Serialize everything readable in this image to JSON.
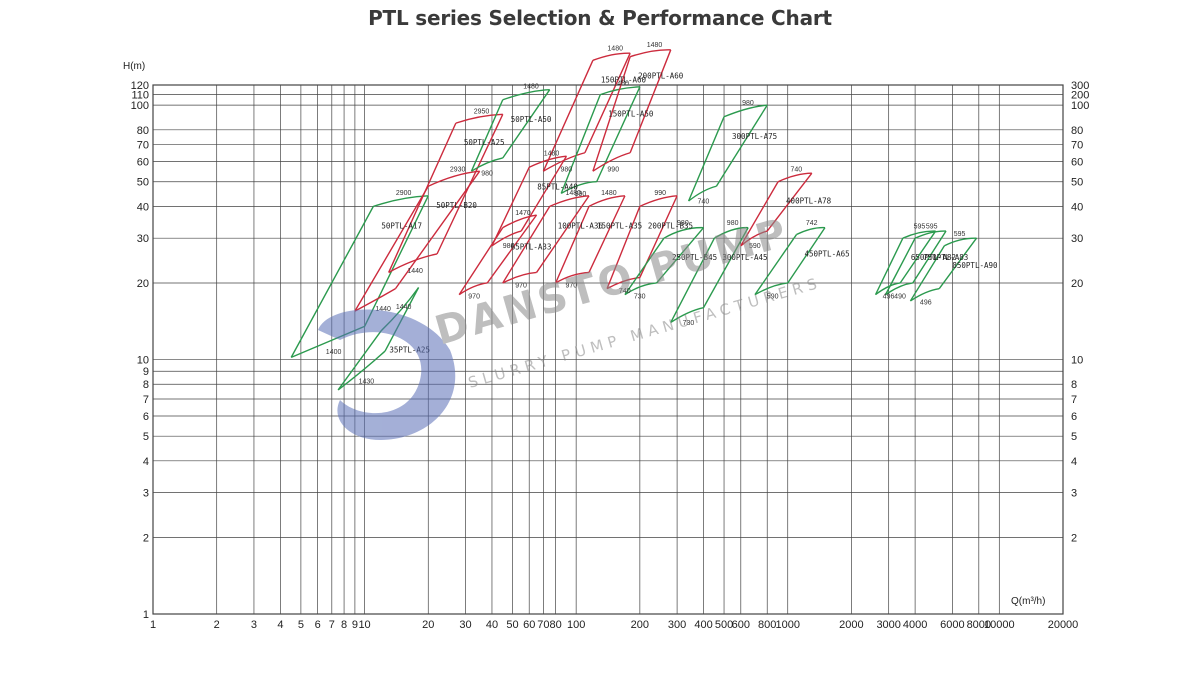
{
  "title": "PTL  series  Selection & Performance Chart",
  "colors": {
    "red": "#cc2b3d",
    "green": "#2b9a4e",
    "grid": "#444444",
    "logo": "#5a6fb7",
    "watermark": "#8a8a8a"
  },
  "chart_data": {
    "type": "line",
    "xlabel": "Q(m³/h)",
    "ylabel": "H(m)",
    "xscale": "log",
    "yscale": "log",
    "xlim": [
      1,
      20000
    ],
    "ylim": [
      1,
      120
    ],
    "grid": true,
    "x_ticks": [
      "1",
      "2",
      "3",
      "4",
      "5",
      "6",
      "7",
      "8",
      "9",
      "10",
      "20",
      "30",
      "40",
      "50",
      "60",
      "70",
      "80",
      "100",
      "200",
      "300",
      "400",
      "500",
      "600",
      "800",
      "1000",
      "2000",
      "3000",
      "4000",
      "6000",
      "8000",
      "10000",
      "20000"
    ],
    "y_ticks_left": [
      "1",
      "2",
      "3",
      "4",
      "5",
      "6",
      "7",
      "8",
      "9",
      "10",
      "20",
      "30",
      "40",
      "50",
      "60",
      "70",
      "80",
      "100",
      "110",
      "120"
    ],
    "y_ticks_right": [
      "2",
      "3",
      "4",
      "5",
      "6",
      "7",
      "8",
      "10",
      "20",
      "30",
      "40",
      "50",
      "60",
      "70",
      "80",
      "100",
      "200",
      "300"
    ],
    "series": [
      {
        "name": "35PTL-A25",
        "color": "green",
        "q": [
          12,
          15,
          18
        ],
        "h": [
          13,
          15,
          19.2
        ],
        "q2": [
          7.5,
          10,
          12.5
        ],
        "h2": [
          7.6,
          8.8,
          10.8
        ],
        "rpm_high": "1440",
        "rpm_low": "1430"
      },
      {
        "name": "50PTL-A17",
        "color": "green",
        "q": [
          11,
          15,
          20
        ],
        "h": [
          40,
          42,
          44
        ],
        "q2": [
          4.5,
          7,
          10
        ],
        "h2": [
          10.2,
          11.5,
          13.5
        ],
        "rpm_high": "2900",
        "rpm_low": "1400"
      },
      {
        "name": "50PTL-B20",
        "color": "red",
        "q": [
          20,
          27,
          35
        ],
        "h": [
          48,
          52,
          55
        ],
        "q2": [
          9,
          12,
          14
        ],
        "h2": [
          15.5,
          17,
          19
        ],
        "rpm_high": "2930",
        "rpm_low": "1440"
      },
      {
        "name": "50PTL-A25",
        "color": "red",
        "q": [
          27,
          35,
          45
        ],
        "h": [
          85,
          88,
          92
        ],
        "q2": [
          13,
          17,
          22
        ],
        "h2": [
          22,
          24,
          26
        ],
        "rpm_high": "2950",
        "rpm_low": "1440"
      },
      {
        "name": "50PTL-A50",
        "color": "green",
        "q": [
          45,
          60,
          75
        ],
        "h": [
          105,
          110,
          115
        ],
        "q2": [
          32,
          38,
          45
        ],
        "h2": [
          55,
          58,
          62
        ],
        "rpm_high": "1480",
        "rpm_low": "980"
      },
      {
        "name": "65PTL-A33",
        "color": "red",
        "q": [
          45,
          55,
          65
        ],
        "h": [
          33,
          35,
          37
        ],
        "q2": [
          28,
          33,
          38
        ],
        "h2": [
          18,
          19,
          20
        ],
        "rpm_high": "1470",
        "rpm_low": "970"
      },
      {
        "name": "85PTL-A40",
        "color": "red",
        "q": [
          60,
          75,
          90
        ],
        "h": [
          57,
          60,
          63
        ],
        "q2": [
          40,
          48,
          55
        ],
        "h2": [
          28,
          30,
          32
        ],
        "rpm_high": "1480",
        "rpm_low": "980"
      },
      {
        "name": "100PTL-A36",
        "color": "red",
        "q": [
          75,
          95,
          115
        ],
        "h": [
          40,
          42,
          44
        ],
        "q2": [
          45,
          55,
          65
        ],
        "h2": [
          20,
          21,
          22
        ],
        "rpm_high": "1480",
        "rpm_low": "970"
      },
      {
        "name": "150PTL-A60",
        "color": "red",
        "q": [
          120,
          150,
          180
        ],
        "h": [
          150,
          155,
          160
        ],
        "q2": [
          70,
          90,
          110
        ],
        "h2": [
          55,
          60,
          65
        ],
        "rpm_high": "1480",
        "rpm_low": "980"
      },
      {
        "name": "150PTL-A50",
        "color": "green",
        "q": [
          130,
          160,
          200
        ],
        "h": [
          110,
          113,
          118
        ],
        "q2": [
          85,
          105,
          125
        ],
        "h2": [
          45,
          48,
          50
        ],
        "rpm_high": "1480",
        "rpm_low": "990"
      },
      {
        "name": "150PTL-A35",
        "color": "red",
        "q": [
          115,
          140,
          170
        ],
        "h": [
          40,
          42,
          44
        ],
        "q2": [
          80,
          95,
          115
        ],
        "h2": [
          20,
          21,
          22
        ],
        "rpm_high": "1480",
        "rpm_low": "970"
      },
      {
        "name": "200PTL-A60",
        "color": "red",
        "q": [
          180,
          230,
          280
        ],
        "h": [
          155,
          160,
          165
        ],
        "q2": [
          120,
          150,
          180
        ],
        "h2": [
          55,
          60,
          65
        ],
        "rpm_high": "1480",
        "rpm_low": "990"
      },
      {
        "name": "200PTL-B35",
        "color": "red",
        "q": [
          200,
          250,
          300
        ],
        "h": [
          40,
          42,
          44
        ],
        "q2": [
          140,
          170,
          200
        ],
        "h2": [
          19,
          20,
          21
        ],
        "rpm_high": "990",
        "rpm_low": "740"
      },
      {
        "name": "250PTL-B45",
        "color": "green",
        "q": [
          260,
          320,
          400
        ],
        "h": [
          30,
          32,
          33
        ],
        "q2": [
          170,
          200,
          240
        ],
        "h2": [
          18,
          19,
          20
        ],
        "rpm_high": "980",
        "rpm_low": "730"
      },
      {
        "name": "300PTL-A75",
        "color": "green",
        "q": [
          500,
          650,
          800
        ],
        "h": [
          90,
          95,
          100
        ],
        "q2": [
          340,
          400,
          460
        ],
        "h2": [
          42,
          45,
          48
        ],
        "rpm_high": "980",
        "rpm_low": "740"
      },
      {
        "name": "300PTL-A45",
        "color": "green",
        "q": [
          450,
          550,
          650
        ],
        "h": [
          30,
          32,
          33
        ],
        "q2": [
          280,
          340,
          400
        ],
        "h2": [
          14,
          15,
          16
        ],
        "rpm_high": "980",
        "rpm_low": "730"
      },
      {
        "name": "400PTL-A78",
        "color": "red",
        "q": [
          900,
          1100,
          1300
        ],
        "h": [
          50,
          52,
          54
        ],
        "q2": [
          600,
          700,
          800
        ],
        "h2": [
          28,
          30,
          32
        ],
        "rpm_high": "740",
        "rpm_low": "590"
      },
      {
        "name": "450PTL-A65",
        "color": "green",
        "q": [
          1100,
          1300,
          1500
        ],
        "h": [
          31,
          32,
          33
        ],
        "q2": [
          700,
          850,
          1000
        ],
        "h2": [
          18,
          19,
          20
        ],
        "rpm_high": "742",
        "rpm_low": "590"
      },
      {
        "name": "650PTL-A82",
        "color": "green",
        "q": [
          3500,
          4200,
          5000
        ],
        "h": [
          30,
          31,
          32
        ],
        "q2": [
          2600,
          3000,
          3400
        ],
        "h2": [
          18,
          19,
          20
        ],
        "rpm_high": "595",
        "rpm_low": "496"
      },
      {
        "name": "750PTL-A83",
        "color": "green",
        "q": [
          4000,
          4800,
          5600
        ],
        "h": [
          30,
          31,
          32
        ],
        "q2": [
          2900,
          3400,
          3900
        ],
        "h2": [
          18,
          19,
          20
        ],
        "rpm_high": "595",
        "rpm_low": "490"
      },
      {
        "name": "850PTL-A90",
        "color": "green",
        "q": [
          5500,
          6500,
          7800
        ],
        "h": [
          28,
          29,
          30
        ],
        "q2": [
          3800,
          4500,
          5200
        ],
        "h2": [
          17,
          18,
          19
        ],
        "rpm_high": "595",
        "rpm_low": "496"
      }
    ]
  },
  "watermark": {
    "brand": "DANSTO PUMP",
    "tagline": "SLURRY PUMP MANUFACTURERS"
  }
}
